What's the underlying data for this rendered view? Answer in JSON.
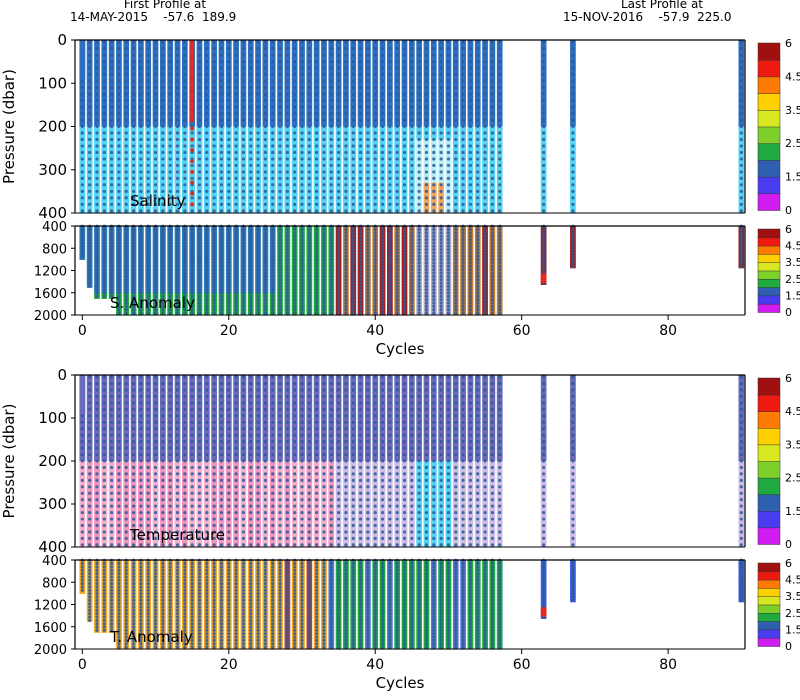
{
  "header": {
    "first_title": "First Profile at",
    "first_line": "14-MAY-2015    -57.6  189.9",
    "last_title": "Last Profile at",
    "last_line": "15-NOV-2016    -57.9  225.0"
  },
  "colors": {
    "cb": [
      "#d01cf0",
      "#4a3cf0",
      "#2f5fb0",
      "#1faa3f",
      "#7fcf2a",
      "#d8e820",
      "#ffd000",
      "#ff7a00",
      "#ee1a10",
      "#a01010"
    ],
    "deep_blue": "#2d6fc0",
    "light_cyan": "#56d4f3",
    "pale_cyan": "#b8eef8",
    "pink": "#f294bf",
    "lavender": "#cdbde6",
    "purple": "#6a6ab8",
    "dot": "#2a5a9a",
    "red_marker": "#e8281e",
    "orange_anom": "#f4a621",
    "green_anom": "#1faa3f",
    "darkred_anom": "#a21c1c",
    "blue_anom": "#3a5ee0"
  },
  "chart_data": [
    {
      "type": "heatmap",
      "panel": "Salinity",
      "label": "Salinity",
      "ylabel": "Pressure (dbar)",
      "xlim": [
        -1,
        90.5
      ],
      "ylim": [
        400,
        0
      ],
      "yticks": [
        "0",
        "100",
        "200",
        "300",
        "400"
      ],
      "yticks_v": [
        0,
        100,
        200,
        300,
        400
      ],
      "cycles_present": "0-57, 63, 67, 90",
      "highlight_cycle": 15,
      "colorbar": {
        "ticks": [
          "6",
          "4.5",
          "3.5",
          "2.5",
          "1.5",
          "0"
        ]
      }
    },
    {
      "type": "heatmap",
      "panel": "S. Anomaly",
      "label": "S. Anomaly",
      "ylim": [
        2000,
        400
      ],
      "yticks": [
        "400",
        "800",
        "1200",
        "1600",
        "2000"
      ],
      "yticks_v": [
        400,
        800,
        1200,
        1600,
        2000
      ],
      "xlabel": "Cycles",
      "xticks": [
        "0",
        "20",
        "40",
        "60",
        "80"
      ],
      "xticks_v": [
        0,
        20,
        40,
        60,
        80
      ],
      "colorbar": {
        "ticks": [
          "6",
          "4.5",
          "3.5",
          "2.5",
          "1.5",
          "0"
        ]
      }
    },
    {
      "type": "heatmap",
      "panel": "Temperature",
      "label": "Temperature",
      "ylabel": "Pressure (dbar)",
      "ylim": [
        400,
        0
      ],
      "yticks": [
        "0",
        "100",
        "200",
        "300",
        "400"
      ],
      "yticks_v": [
        0,
        100,
        200,
        300,
        400
      ],
      "colorbar": {
        "ticks": [
          "6",
          "4.5",
          "3.5",
          "2.5",
          "1.5",
          "0"
        ]
      }
    },
    {
      "type": "heatmap",
      "panel": "T. Anomaly",
      "label": "T. Anomaly",
      "ylim": [
        2000,
        400
      ],
      "yticks": [
        "400",
        "800",
        "1200",
        "1600",
        "2000"
      ],
      "yticks_v": [
        400,
        800,
        1200,
        1600,
        2000
      ],
      "xlabel": "Cycles",
      "xticks": [
        "0",
        "20",
        "40",
        "60",
        "80"
      ],
      "xticks_v": [
        0,
        20,
        40,
        60,
        80
      ],
      "colorbar": {
        "ticks": [
          "6",
          "4.5",
          "3.5",
          "2.5",
          "1.5",
          "0"
        ]
      }
    }
  ]
}
